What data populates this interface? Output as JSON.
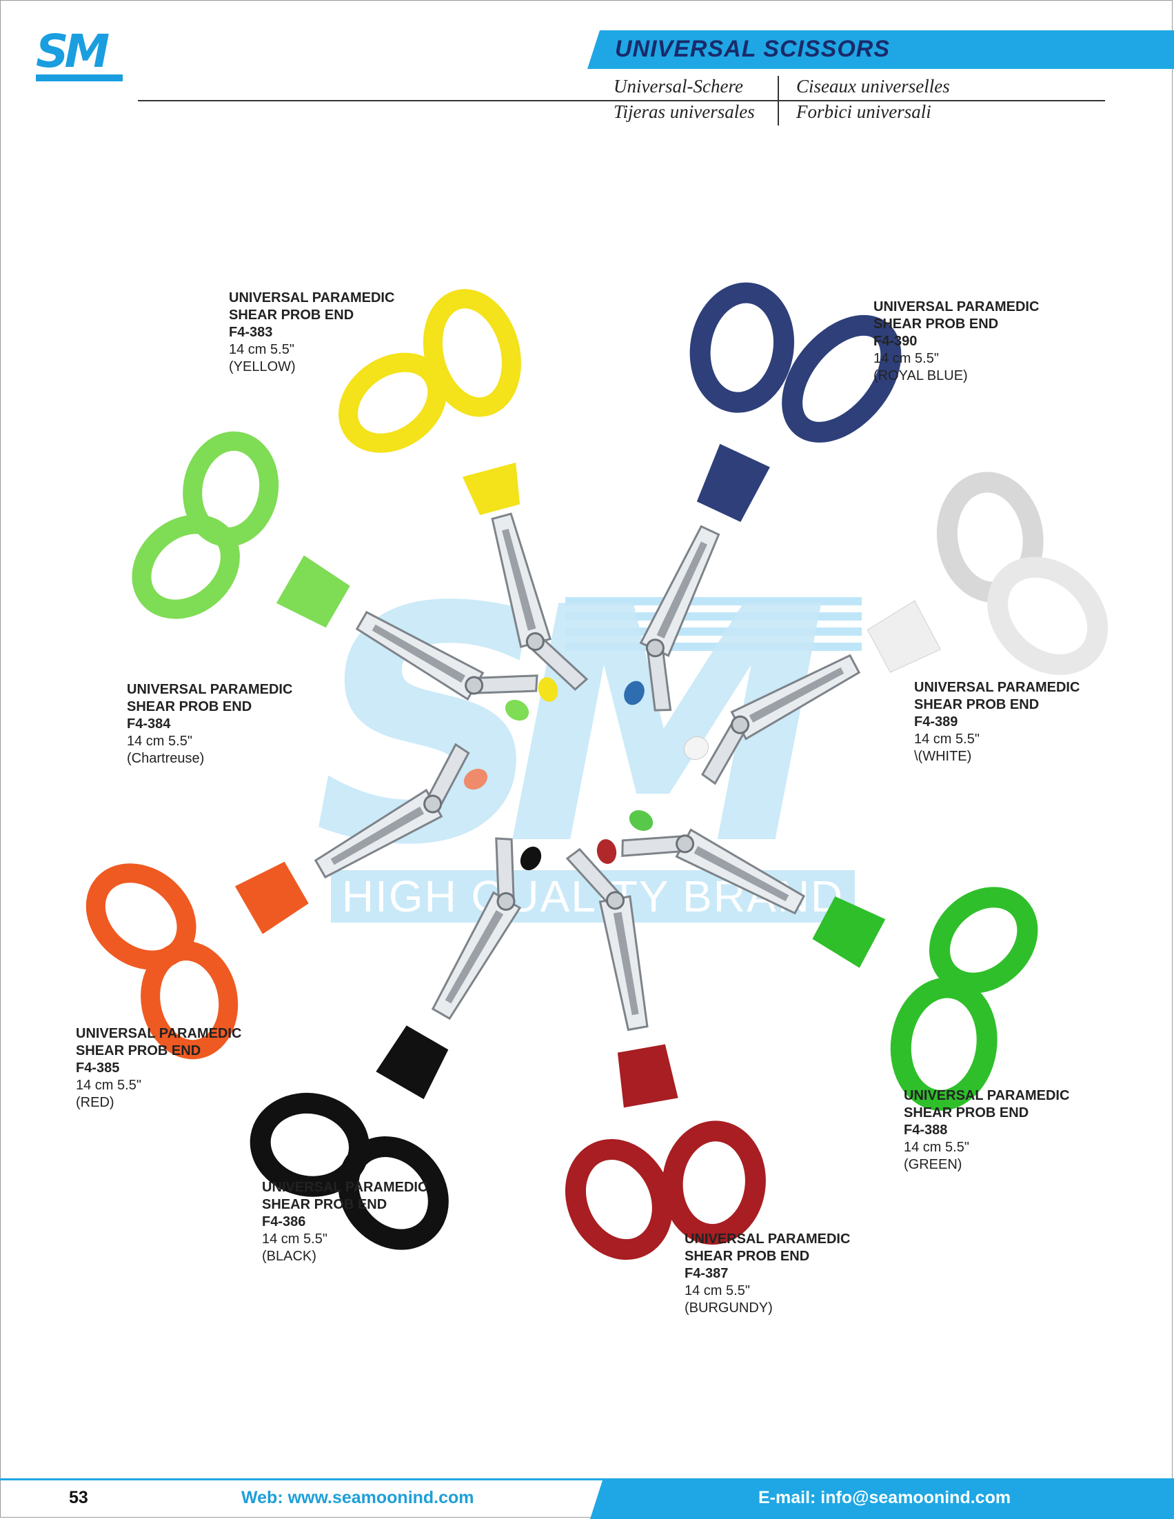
{
  "brand": {
    "logo_text": "SM"
  },
  "header": {
    "title": "UNIVERSAL SCISSORS",
    "de": "Universal-Schere",
    "fr": "Ciseaux universelles",
    "es": "Tijeras universales",
    "it": "Forbici universali"
  },
  "watermark": {
    "logo": "SM",
    "text": "HIGH QUALITY BRAND"
  },
  "colors": {
    "accent": "#1ea7e4",
    "title": "#1a2a6a"
  },
  "products": [
    {
      "name_line1": "UNIVERSAL PARAMEDIC",
      "name_line2": "SHEAR PROB END",
      "code": "F4-383",
      "size": "14 cm 5.5\"",
      "color": "(YELLOW)",
      "handle": "#f4e21a"
    },
    {
      "name_line1": "UNIVERSAL PARAMEDIC",
      "name_line2": "SHEAR PROB END",
      "code": "F4-390",
      "size": "14 cm  5.5\"",
      "color": "(ROYAL BLUE)",
      "handle": "#2e3f7a"
    },
    {
      "name_line1": "UNIVERSAL PARAMEDIC",
      "name_line2": "SHEAR PROB END",
      "code": "F4-384",
      "size": "14 cm  5.5\"",
      "color": "(Chartreuse)",
      "handle": "#7fdc55"
    },
    {
      "name_line1": "UNIVERSAL PARAMEDIC",
      "name_line2": "SHEAR PROB END",
      "code": "F4-389",
      "size": "14 cm  5.5\"",
      "color": "\\(WHITE)",
      "handle": "#f6f6f6"
    },
    {
      "name_line1": "UNIVERSAL PARAMEDIC",
      "name_line2": "SHEAR PROB END",
      "code": "F4-385",
      "size": "14 cm  5.5\"",
      "color": "(RED)",
      "handle": "#ef5a22"
    },
    {
      "name_line1": "UNIVERSAL PARAMEDIC",
      "name_line2": "SHEAR  PROB END",
      "code": "F4-386",
      "size": "14 cm  5.5\"",
      "color": "(BLACK)",
      "handle": "#111111"
    },
    {
      "name_line1": "UNIVERSAL PARAMEDIC",
      "name_line2": "SHEAR  PROB END",
      "code": "F4-387",
      "size": "14 cm  5.5\"",
      "color": "(BURGUNDY)",
      "handle": "#a81e22"
    },
    {
      "name_line1": "UNIVERSAL PARAMEDIC",
      "name_line2": "SHEAR PROB END",
      "code": "F4-388",
      "size": "14 cm  5.5\"",
      "color": "(GREEN)",
      "handle": "#2fbf2a"
    }
  ],
  "footer": {
    "page": "53",
    "web": "Web: www.seamoonind.com",
    "email": "E-mail: info@seamoonind.com"
  }
}
